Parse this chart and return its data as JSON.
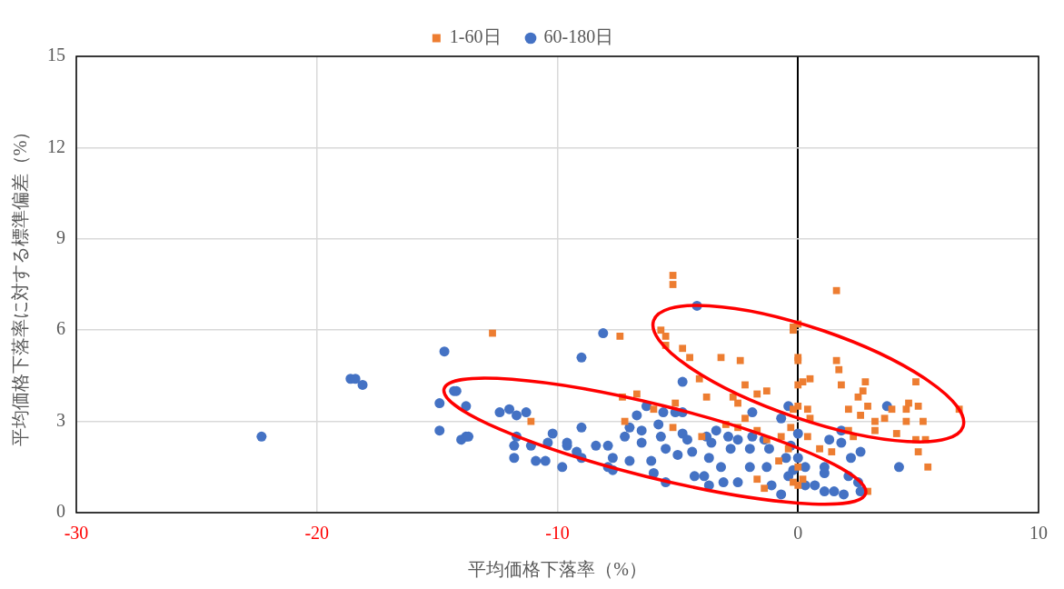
{
  "chart_data": {
    "type": "scatter",
    "xlabel": "平均価格下落率（%）",
    "ylabel": "平均価格下落率に対する標準偏差（%）",
    "xlim": [
      -30,
      10
    ],
    "xticks": [
      -30,
      -20,
      -10,
      0,
      10
    ],
    "ylim": [
      0,
      15
    ],
    "yticks": [
      0,
      3,
      6,
      9,
      12,
      15
    ],
    "grid": true,
    "legend": "top",
    "series": [
      {
        "name": "1-60日",
        "color": "#ed7d31",
        "marker": "square",
        "x": [
          -12.7,
          -11.1,
          -5.2,
          -5.2,
          -7.4,
          -5.7,
          -5.5,
          -5.5,
          -4.8,
          -4.5,
          -3.2,
          -2.4,
          -4.1,
          -3.8,
          -2.2,
          -2.7,
          -2.5,
          -1.7,
          -1.3,
          -7.3,
          -6.7,
          -6.0,
          -5.1,
          -7.2,
          -5.2,
          -4.0,
          -3.0,
          -2.5,
          -2.2,
          -1.7,
          -1.3,
          -1.7,
          -1.4,
          -0.8,
          -0.7,
          -0.4,
          0.0,
          -0.2,
          0.0,
          0.0,
          0.0,
          0.0,
          1.6,
          -0.2,
          0.0,
          1.6,
          1.7,
          1.8,
          0.2,
          0.5,
          2.8,
          2.7,
          2.5,
          2.9,
          2.1,
          2.6,
          3.2,
          3.2,
          3.6,
          3.9,
          4.9,
          4.6,
          5.0,
          4.5,
          4.1,
          4.5,
          5.2,
          4.9,
          5.3,
          5.0,
          5.4,
          6.7,
          2.3,
          2.1,
          0.4,
          0.5,
          -0.2,
          -0.3,
          0.4,
          0.9,
          1.4,
          0.0,
          0.2,
          2.9,
          -0.2
        ],
        "values": [
          5.9,
          3.0,
          7.8,
          7.5,
          5.8,
          6.0,
          5.8,
          5.5,
          5.4,
          5.1,
          5.1,
          5.0,
          4.4,
          3.8,
          4.2,
          3.8,
          3.6,
          3.9,
          4.0,
          3.8,
          3.9,
          3.4,
          3.6,
          3.0,
          2.8,
          2.5,
          2.9,
          2.8,
          3.1,
          2.7,
          2.4,
          1.1,
          0.8,
          1.7,
          2.5,
          2.1,
          5.1,
          6.1,
          6.2,
          4.2,
          3.5,
          0.9,
          7.3,
          6.0,
          5.0,
          5.0,
          4.7,
          4.2,
          4.3,
          4.4,
          4.3,
          4.0,
          3.8,
          3.5,
          3.4,
          3.2,
          3.0,
          2.7,
          3.1,
          3.4,
          4.3,
          3.6,
          3.5,
          3.4,
          2.6,
          3.0,
          3.0,
          2.4,
          2.4,
          2.0,
          1.5,
          3.4,
          2.5,
          2.7,
          3.4,
          3.1,
          3.4,
          2.8,
          2.5,
          2.1,
          2.0,
          1.5,
          1.1,
          0.7,
          1.0
        ]
      },
      {
        "name": "60-180日",
        "color": "#4472c4",
        "marker": "circle",
        "x": [
          -22.3,
          -18.6,
          -18.4,
          -18.1,
          -14.7,
          -14.9,
          -14.9,
          -14.3,
          -14.2,
          -13.8,
          -14.0,
          -13.8,
          -13.7,
          -12.4,
          -12.0,
          -11.7,
          -11.3,
          -11.7,
          -11.8,
          -11.8,
          -11.1,
          -10.9,
          -10.5,
          -10.2,
          -10.4,
          -9.8,
          -9.6,
          -8.1,
          -9.0,
          -4.2,
          -4.8,
          -6.3,
          -9.0,
          -9.6,
          -9.2,
          -9.0,
          -8.4,
          -7.9,
          -7.7,
          -7.9,
          -7.7,
          -7.2,
          -7.0,
          -6.7,
          -6.5,
          -6.5,
          -7.0,
          -6.1,
          -6.0,
          -5.5,
          -5.8,
          -5.6,
          -5.1,
          -4.8,
          -5.7,
          -5.5,
          -5.0,
          -4.8,
          -4.6,
          -4.4,
          -4.3,
          -3.9,
          -3.7,
          -3.8,
          -3.6,
          -3.4,
          -3.7,
          -3.2,
          -3.1,
          -2.9,
          -2.8,
          -2.5,
          -2.5,
          -2.0,
          -1.9,
          -1.9,
          -2.0,
          -1.4,
          -1.2,
          -1.3,
          -1.1,
          -0.7,
          -0.7,
          -0.4,
          -0.5,
          0.0,
          0.0,
          -0.2,
          0.3,
          3.7,
          1.8,
          1.3,
          1.8,
          2.6,
          2.2,
          4.2,
          1.1,
          1.1,
          2.1,
          2.5,
          2.6,
          0.7,
          1.1,
          1.5,
          1.9,
          -0.3,
          0.3,
          -0.4
        ],
        "values": [
          2.5,
          4.4,
          4.4,
          4.2,
          5.3,
          3.6,
          2.7,
          4.0,
          4.0,
          3.5,
          2.4,
          2.5,
          2.5,
          3.3,
          3.4,
          3.2,
          3.3,
          2.5,
          2.2,
          1.8,
          2.2,
          1.7,
          1.7,
          2.6,
          2.3,
          1.5,
          2.2,
          5.9,
          5.1,
          6.8,
          4.3,
          3.5,
          2.8,
          2.3,
          2.0,
          1.8,
          2.2,
          2.2,
          1.8,
          1.5,
          1.4,
          2.5,
          2.8,
          3.2,
          2.7,
          2.3,
          1.7,
          1.7,
          1.3,
          1.0,
          2.9,
          3.3,
          3.3,
          3.3,
          2.5,
          2.1,
          1.9,
          2.6,
          2.4,
          2.0,
          1.2,
          1.2,
          0.9,
          2.5,
          2.3,
          2.7,
          1.8,
          1.5,
          1.0,
          2.5,
          2.1,
          2.4,
          1.0,
          1.5,
          2.5,
          3.3,
          2.1,
          2.4,
          2.1,
          1.5,
          0.9,
          0.6,
          3.1,
          3.5,
          1.8,
          2.6,
          1.8,
          1.4,
          0.9,
          3.5,
          2.7,
          2.4,
          2.3,
          2.0,
          1.8,
          1.5,
          1.5,
          1.3,
          1.2,
          1.0,
          0.7,
          0.9,
          0.7,
          0.7,
          0.6,
          2.2,
          1.5,
          1.2
        ]
      }
    ]
  }
}
